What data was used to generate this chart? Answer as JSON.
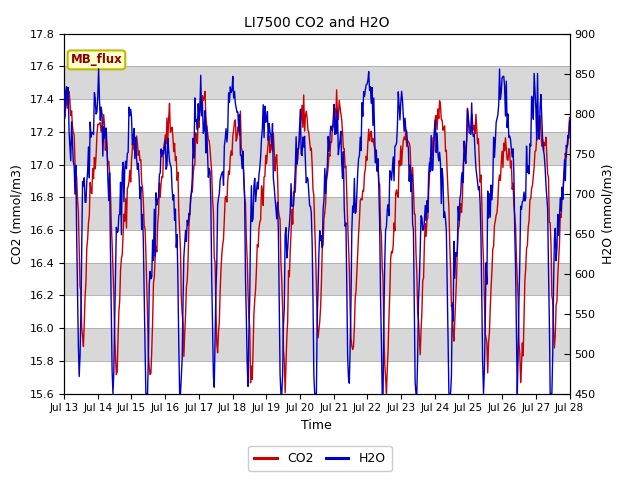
{
  "title": "LI7500 CO2 and H2O",
  "xlabel": "Time",
  "ylabel_left": "CO2 (mmol/m3)",
  "ylabel_right": "H2O (mmol/m3)",
  "co2_color": "#cc0000",
  "h2o_color": "#0000cc",
  "ylim_left": [
    15.6,
    17.8
  ],
  "ylim_right": [
    450,
    900
  ],
  "yticks_left": [
    15.6,
    15.8,
    16.0,
    16.2,
    16.4,
    16.6,
    16.8,
    17.0,
    17.2,
    17.4,
    17.6,
    17.8
  ],
  "yticks_right": [
    450,
    500,
    550,
    600,
    650,
    700,
    750,
    800,
    850,
    900
  ],
  "x_tick_labels": [
    "Jul 13",
    "Jul 14",
    "Jul 15",
    "Jul 16",
    "Jul 17",
    "Jul 18",
    "Jul 19",
    "Jul 20",
    "Jul 21",
    "Jul 22",
    "Jul 23",
    "Jul 24",
    "Jul 25",
    "Jul 26",
    "Jul 27",
    "Jul 28"
  ],
  "annotation_text": "MB_flux",
  "annotation_bg": "#ffffcc",
  "annotation_border": "#bbbb00",
  "plot_bg": "#d8d8d8",
  "band_color": "#e8e8e8",
  "legend_co2": "CO2",
  "legend_h2o": "H2O",
  "linewidth": 1.0,
  "n_points": 600,
  "seed": 42
}
